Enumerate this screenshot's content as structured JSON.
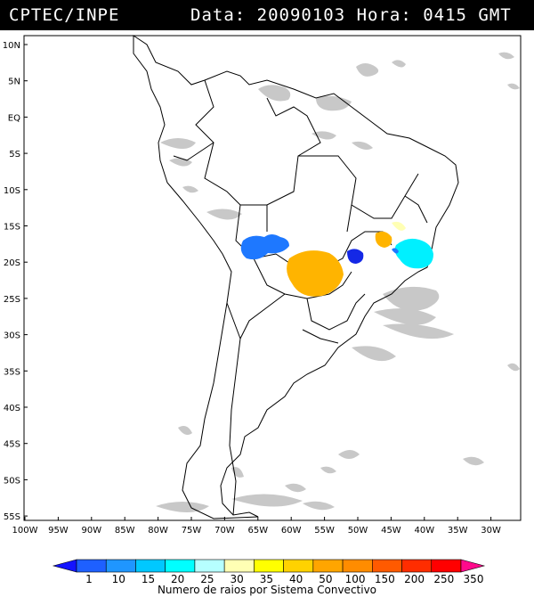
{
  "header": {
    "source": "CPTEC/INPE",
    "datetime": "Data: 20090103 Hora: 0415 GMT"
  },
  "map": {
    "lat_labels": [
      "10N",
      "5N",
      "EQ",
      "5S",
      "10S",
      "15S",
      "20S",
      "25S",
      "30S",
      "35S",
      "40S",
      "45S",
      "50S",
      "55S"
    ],
    "lon_labels": [
      "100W",
      "95W",
      "90W",
      "85W",
      "80W",
      "75W",
      "70W",
      "65W",
      "60W",
      "55W",
      "50W",
      "45W",
      "40W",
      "35W",
      "30W"
    ]
  },
  "legend": {
    "title": "Numero de raios por Sistema Convectivo",
    "values": [
      "1",
      "10",
      "15",
      "20",
      "25",
      "30",
      "35",
      "40",
      "50",
      "100",
      "150",
      "200",
      "250",
      "350"
    ],
    "colors": [
      "#1414ff",
      "#1e60ff",
      "#1f96ff",
      "#00c8ff",
      "#00ffff",
      "#b6ffff",
      "#ffffb4",
      "#ffff00",
      "#ffd200",
      "#ffa500",
      "#ff8c00",
      "#ff5a00",
      "#ff2d00",
      "#ff0000",
      "#ff0a8c"
    ]
  },
  "colors": {
    "cloud_gray": "#c8c8c8",
    "cell_blue": "#1e78ff",
    "cell_darkblue": "#1428e6",
    "cell_cyan": "#00f0ff",
    "cell_orange": "#ffb400",
    "cell_yellow": "#ffffb4"
  }
}
